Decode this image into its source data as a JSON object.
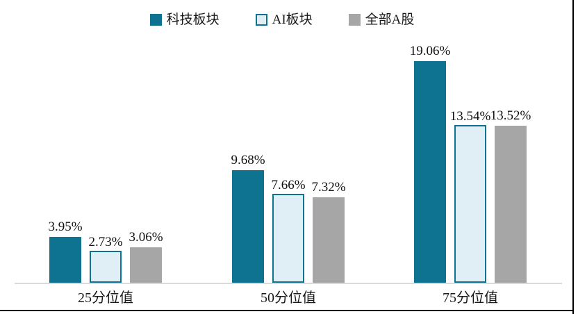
{
  "chart_data": {
    "type": "bar",
    "title": "",
    "xlabel": "",
    "ylabel": "",
    "categories": [
      "25分位值",
      "50分位值",
      "75分位值"
    ],
    "series": [
      {
        "key": "tech-sector",
        "name": "科技板块",
        "values": [
          3.95,
          9.68,
          19.06
        ],
        "labels": [
          "3.95%",
          "9.68%",
          "19.06%"
        ],
        "color": "#0e7390",
        "style": "solid"
      },
      {
        "key": "ai-sector",
        "name": "AI板块",
        "values": [
          2.73,
          7.66,
          13.54
        ],
        "labels": [
          "2.73%",
          "7.66%",
          "13.54%"
        ],
        "color": "#0e7390",
        "fill_color": "#e0eef5",
        "style": "outline"
      },
      {
        "key": "all-a-shares",
        "name": "全部A股",
        "values": [
          3.06,
          7.32,
          13.52
        ],
        "labels": [
          "3.06%",
          "7.32%",
          "13.52%"
        ],
        "color": "#a6a6a6",
        "style": "solid"
      }
    ],
    "ylim": [
      0,
      20
    ],
    "grid": false,
    "y_axis_visible": false,
    "legend_position": "top",
    "axis_line_color": "#d9d9d9",
    "data_label_color": "#111111"
  }
}
